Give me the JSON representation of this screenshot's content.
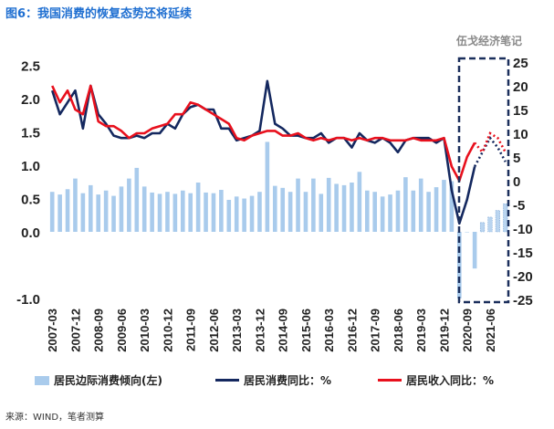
{
  "figure_title": "图6：我国消费的恢复态势还将延续",
  "watermark": "伍戈经济笔记",
  "source_note": "来源：WIND，笔者测算",
  "colors": {
    "bar": "#a9cbec",
    "consumption_line": "#14285f",
    "income_line": "#e8101d",
    "highlight_box": "#1b2f5c"
  },
  "legend": {
    "bar": "居民边际消费倾向(左)",
    "consumption": "居民消费同比：%",
    "income": "居民收入同比：%"
  },
  "chart_data": {
    "type": "bar+line",
    "y_left": {
      "min": -1.0,
      "max": 2.5,
      "ticks": [
        "2.5",
        "2.0",
        "1.5",
        "1.0",
        "0.5",
        "0.0",
        "-1.0"
      ],
      "tick_values": [
        2.5,
        2.0,
        1.5,
        1.0,
        0.5,
        0.0,
        -1.0
      ]
    },
    "y_right": {
      "min": -25,
      "max": 25,
      "ticks": [
        "25",
        "20",
        "15",
        "10",
        "5",
        "0",
        "-5",
        "-10",
        "-15",
        "-20",
        "-25"
      ]
    },
    "x_tick_labels": [
      "2007-03",
      "2007-12",
      "2008-09",
      "2009-06",
      "2010-03",
      "2010-12",
      "2011-09",
      "2012-06",
      "2013-03",
      "2013-12",
      "2014-09",
      "2015-06",
      "2016-03",
      "2016-12",
      "2017-09",
      "2018-06",
      "2019-03",
      "2019-12",
      "2020-09",
      "2021-06"
    ],
    "quarters_start": "2007-03",
    "forecast_note": "dotted segments = projection",
    "bars": {
      "name": "居民边际消费倾向(左)",
      "values": [
        0.6,
        0.56,
        0.64,
        0.8,
        0.58,
        0.7,
        0.56,
        0.62,
        0.54,
        0.68,
        0.8,
        0.96,
        0.68,
        0.59,
        0.57,
        0.6,
        0.57,
        0.62,
        0.58,
        0.74,
        0.59,
        0.58,
        0.63,
        0.48,
        0.53,
        0.5,
        0.54,
        0.6,
        1.35,
        0.69,
        0.66,
        0.6,
        0.8,
        0.6,
        0.8,
        0.57,
        0.81,
        0.72,
        0.7,
        0.74,
        0.9,
        0.62,
        0.6,
        0.53,
        0.56,
        0.62,
        0.82,
        0.62,
        0.8,
        0.6,
        0.67,
        0.78,
        0.76,
        -1.0,
        0.0,
        -0.55,
        0.14,
        0.22,
        0.32,
        0.42
      ],
      "forecast_from_index": 56
    },
    "series": [
      {
        "name": "居民消费同比：%",
        "values": [
          19,
          14,
          16.5,
          19,
          11,
          20,
          14,
          12,
          9.5,
          9,
          9,
          9.5,
          9,
          10,
          10,
          12,
          11,
          14,
          15.5,
          16,
          15,
          15,
          11,
          11,
          8.5,
          9,
          9.5,
          10.5,
          21,
          12,
          11,
          9.5,
          9.5,
          9,
          9,
          10,
          8,
          9,
          9,
          7,
          10,
          8.5,
          8,
          9,
          8,
          6,
          8.5,
          9,
          9,
          9,
          8,
          9,
          -2,
          -9,
          -4,
          3,
          6,
          9,
          7,
          4
        ],
        "forecast_from_index": 55
      },
      {
        "name": "居民收入同比：%",
        "values": [
          20,
          16.5,
          19,
          15,
          14,
          20,
          12.5,
          11.5,
          11.5,
          10.5,
          9,
          10,
          10,
          11,
          11.5,
          12,
          14,
          14,
          16.5,
          16,
          15,
          14,
          13,
          12,
          9,
          8.5,
          9.5,
          10,
          10.5,
          10.5,
          9.5,
          9.5,
          10,
          9,
          8.5,
          9,
          8.5,
          9,
          9,
          8.5,
          9,
          8.5,
          9,
          9,
          8.5,
          8.5,
          8.5,
          9,
          8.5,
          8.5,
          8.5,
          9,
          3,
          0,
          5,
          8,
          6,
          10,
          9,
          6
        ],
        "forecast_from_index": 55
      }
    ]
  }
}
